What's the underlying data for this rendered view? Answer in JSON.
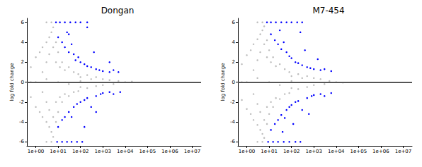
{
  "chart_data": [
    {
      "type": "scatter",
      "title": "Dongan",
      "y_label": "log fold change",
      "log": "x",
      "grid": false,
      "marker": "circle",
      "xlim": [
        0.4,
        25000000
      ],
      "xticks": [
        {
          "value": 1,
          "label": "1e+00"
        },
        {
          "value": 10,
          "label": "1e+01"
        },
        {
          "value": 100,
          "label": "1e+02"
        },
        {
          "value": 1000,
          "label": "1e+03"
        },
        {
          "value": 10000,
          "label": "1e+04"
        },
        {
          "value": 100000,
          "label": "1e+05"
        },
        {
          "value": 1000000,
          "label": "1e+06"
        },
        {
          "value": 10000000,
          "label": "1e+07"
        }
      ],
      "ylim": [
        -6.4,
        6.4
      ],
      "yticks": [
        -6,
        -4,
        -2,
        0,
        2,
        4,
        6
      ],
      "reference_line": 0,
      "series": [
        {
          "color": "#bebebe",
          "points": [
            [
              0.6,
              0
            ],
            [
              0.6,
              1.5
            ],
            [
              0.6,
              -1.5
            ],
            [
              1,
              2.5
            ],
            [
              1,
              -2.5
            ],
            [
              1.5,
              3
            ],
            [
              1.5,
              -3
            ],
            [
              2,
              3.5
            ],
            [
              2,
              -3.5
            ],
            [
              3,
              4
            ],
            [
              3,
              -4
            ],
            [
              4,
              4.5
            ],
            [
              4,
              -4.5
            ],
            [
              5,
              5
            ],
            [
              5,
              -5
            ],
            [
              6,
              5.5
            ],
            [
              6,
              -5.5
            ],
            [
              2,
              1
            ],
            [
              2,
              -1
            ],
            [
              3,
              2
            ],
            [
              3,
              -2
            ],
            [
              4,
              2.8
            ],
            [
              4,
              -2.8
            ],
            [
              6,
              3.5
            ],
            [
              6,
              -3.5
            ],
            [
              8,
              4
            ],
            [
              8,
              -4
            ],
            [
              8,
              2
            ],
            [
              8,
              -2
            ],
            [
              10,
              3
            ],
            [
              10,
              -3
            ],
            [
              12,
              1.5
            ],
            [
              12,
              -1.5
            ],
            [
              15,
              2
            ],
            [
              15,
              -2
            ],
            [
              20,
              1.2
            ],
            [
              20,
              -1.2
            ],
            [
              30,
              1.5
            ],
            [
              30,
              -1.4
            ],
            [
              50,
              1
            ],
            [
              50,
              -1
            ],
            [
              80,
              0.8
            ],
            [
              80,
              -0.9
            ],
            [
              100,
              0.5
            ],
            [
              100,
              -0.5
            ],
            [
              200,
              0.7
            ],
            [
              200,
              -0.6
            ],
            [
              300,
              0.3
            ],
            [
              500,
              0.5
            ],
            [
              500,
              -0.4
            ],
            [
              1000,
              0.3
            ],
            [
              1000,
              -0.3
            ],
            [
              2000,
              0.2
            ],
            [
              3000,
              -0.2
            ],
            [
              5000,
              0.1
            ],
            [
              1,
              0
            ],
            [
              3,
              0.3
            ],
            [
              10,
              0
            ],
            [
              30,
              -0.2
            ],
            [
              100,
              0.1
            ],
            [
              10000,
              0
            ],
            [
              20000,
              0.05
            ],
            [
              3,
              6
            ],
            [
              5,
              6
            ],
            [
              3,
              -6
            ],
            [
              5,
              -6
            ]
          ]
        },
        {
          "color": "#0000ff",
          "points": [
            [
              8,
              6
            ],
            [
              12,
              6
            ],
            [
              20,
              6
            ],
            [
              35,
              6
            ],
            [
              60,
              6
            ],
            [
              100,
              6
            ],
            [
              200,
              6
            ],
            [
              9,
              -6
            ],
            [
              15,
              -6
            ],
            [
              25,
              -6
            ],
            [
              40,
              -6
            ],
            [
              70,
              -6
            ],
            [
              120,
              -6
            ],
            [
              10,
              4.5
            ],
            [
              15,
              4
            ],
            [
              20,
              3.5
            ],
            [
              30,
              3
            ],
            [
              40,
              3.8
            ],
            [
              50,
              2.8
            ],
            [
              60,
              2.2
            ],
            [
              80,
              2.5
            ],
            [
              100,
              2
            ],
            [
              150,
              1.8
            ],
            [
              200,
              1.6
            ],
            [
              300,
              1.5
            ],
            [
              500,
              1.3
            ],
            [
              700,
              1.2
            ],
            [
              1000,
              1.1
            ],
            [
              2000,
              1
            ],
            [
              3000,
              1.2
            ],
            [
              5000,
              1
            ],
            [
              10,
              -4.5
            ],
            [
              15,
              -3.8
            ],
            [
              20,
              -3.5
            ],
            [
              30,
              -3
            ],
            [
              40,
              -3.5
            ],
            [
              50,
              -2.5
            ],
            [
              70,
              -2.2
            ],
            [
              100,
              -2
            ],
            [
              150,
              -1.8
            ],
            [
              200,
              -1.6
            ],
            [
              300,
              -2.5
            ],
            [
              500,
              -1.4
            ],
            [
              800,
              -1.2
            ],
            [
              1000,
              -1.1
            ],
            [
              2000,
              -1
            ],
            [
              3000,
              -1.2
            ],
            [
              6000,
              -1
            ],
            [
              25,
              5
            ],
            [
              200,
              5.5
            ],
            [
              400,
              3
            ],
            [
              150,
              -4.5
            ],
            [
              30,
              4.8
            ],
            [
              500,
              -3
            ],
            [
              2000,
              2
            ]
          ]
        }
      ]
    },
    {
      "type": "scatter",
      "title": "M7-454",
      "y_label": "log fold change",
      "log": "x",
      "grid": false,
      "marker": "circle",
      "xlim": [
        0.4,
        25000000
      ],
      "xticks": [
        {
          "value": 1,
          "label": "1e+00"
        },
        {
          "value": 10,
          "label": "1e+01"
        },
        {
          "value": 100,
          "label": "1e+02"
        },
        {
          "value": 1000,
          "label": "1e+03"
        },
        {
          "value": 10000,
          "label": "1e+04"
        },
        {
          "value": 100000,
          "label": "1e+05"
        },
        {
          "value": 1000000,
          "label": "1e+06"
        },
        {
          "value": 10000000,
          "label": "1e+07"
        }
      ],
      "ylim": [
        -6.4,
        6.4
      ],
      "yticks": [
        -6,
        -4,
        -2,
        0,
        2,
        4,
        6
      ],
      "reference_line": 0,
      "series": [
        {
          "color": "#bebebe",
          "points": [
            [
              0.6,
              0
            ],
            [
              0.6,
              1.8
            ],
            [
              0.6,
              -1.8
            ],
            [
              1,
              2.7
            ],
            [
              1,
              -2.7
            ],
            [
              1.5,
              3.2
            ],
            [
              1.5,
              -3.2
            ],
            [
              2,
              3.8
            ],
            [
              2,
              -3.8
            ],
            [
              3,
              4.3
            ],
            [
              3,
              -4.3
            ],
            [
              4,
              4.8
            ],
            [
              4,
              -4.8
            ],
            [
              5,
              5.2
            ],
            [
              5,
              -5.2
            ],
            [
              6,
              5.6
            ],
            [
              6,
              -5.6
            ],
            [
              2,
              1.2
            ],
            [
              2,
              -1.2
            ],
            [
              3,
              2.2
            ],
            [
              3,
              -2.2
            ],
            [
              4,
              3
            ],
            [
              4,
              -3
            ],
            [
              6,
              3.8
            ],
            [
              6,
              -3.8
            ],
            [
              8,
              4.2
            ],
            [
              8,
              -4.2
            ],
            [
              8,
              2.5
            ],
            [
              8,
              -2.5
            ],
            [
              10,
              3.2
            ],
            [
              10,
              -3.2
            ],
            [
              12,
              2
            ],
            [
              12,
              -2
            ],
            [
              15,
              2.5
            ],
            [
              15,
              -2.5
            ],
            [
              20,
              1.6
            ],
            [
              20,
              -1.6
            ],
            [
              30,
              1.8
            ],
            [
              30,
              -1.7
            ],
            [
              50,
              1.3
            ],
            [
              50,
              -1.2
            ],
            [
              80,
              1
            ],
            [
              80,
              -1.1
            ],
            [
              100,
              0.6
            ],
            [
              100,
              -0.6
            ],
            [
              200,
              0.8
            ],
            [
              200,
              -0.7
            ],
            [
              300,
              0.4
            ],
            [
              500,
              0.6
            ],
            [
              500,
              -0.5
            ],
            [
              1000,
              0.4
            ],
            [
              1000,
              -0.3
            ],
            [
              2000,
              0.3
            ],
            [
              3000,
              -0.2
            ],
            [
              5000,
              0.1
            ],
            [
              1,
              0
            ],
            [
              3,
              0.4
            ],
            [
              10,
              0
            ],
            [
              30,
              -0.3
            ],
            [
              100,
              0.1
            ],
            [
              10000,
              0
            ],
            [
              20000,
              -0.05
            ],
            [
              3,
              6
            ],
            [
              5,
              6
            ],
            [
              3,
              -6
            ],
            [
              5,
              -6
            ]
          ]
        },
        {
          "color": "#0000ff",
          "points": [
            [
              8,
              6
            ],
            [
              12,
              6
            ],
            [
              20,
              6
            ],
            [
              35,
              6
            ],
            [
              60,
              6
            ],
            [
              100,
              6
            ],
            [
              180,
              6
            ],
            [
              300,
              6
            ],
            [
              9,
              -6
            ],
            [
              15,
              -6
            ],
            [
              25,
              -6
            ],
            [
              45,
              -6
            ],
            [
              80,
              -6
            ],
            [
              150,
              -6
            ],
            [
              250,
              -6
            ],
            [
              12,
              4.8
            ],
            [
              18,
              4.2
            ],
            [
              25,
              3.8
            ],
            [
              35,
              3.3
            ],
            [
              45,
              4
            ],
            [
              60,
              3
            ],
            [
              80,
              2.6
            ],
            [
              100,
              2.4
            ],
            [
              150,
              2
            ],
            [
              200,
              1.9
            ],
            [
              300,
              1.7
            ],
            [
              500,
              1.5
            ],
            [
              700,
              1.4
            ],
            [
              1000,
              1.3
            ],
            [
              2000,
              1.2
            ],
            [
              3000,
              1.3
            ],
            [
              6000,
              1.1
            ],
            [
              12,
              -4.8
            ],
            [
              18,
              -4.2
            ],
            [
              25,
              -3.8
            ],
            [
              35,
              -3.3
            ],
            [
              50,
              -3.6
            ],
            [
              60,
              -2.8
            ],
            [
              80,
              -2.5
            ],
            [
              100,
              -2.3
            ],
            [
              150,
              -2
            ],
            [
              200,
              -1.9
            ],
            [
              300,
              -2.8
            ],
            [
              500,
              -1.6
            ],
            [
              800,
              -1.4
            ],
            [
              1000,
              -1.3
            ],
            [
              2000,
              -1.2
            ],
            [
              3000,
              -1.4
            ],
            [
              6000,
              -1.1
            ],
            [
              30,
              5.2
            ],
            [
              250,
              5
            ],
            [
              400,
              3.2
            ],
            [
              120,
              -4.2
            ],
            [
              40,
              -5
            ],
            [
              600,
              -3.2
            ],
            [
              1500,
              2.3
            ]
          ]
        }
      ]
    }
  ]
}
